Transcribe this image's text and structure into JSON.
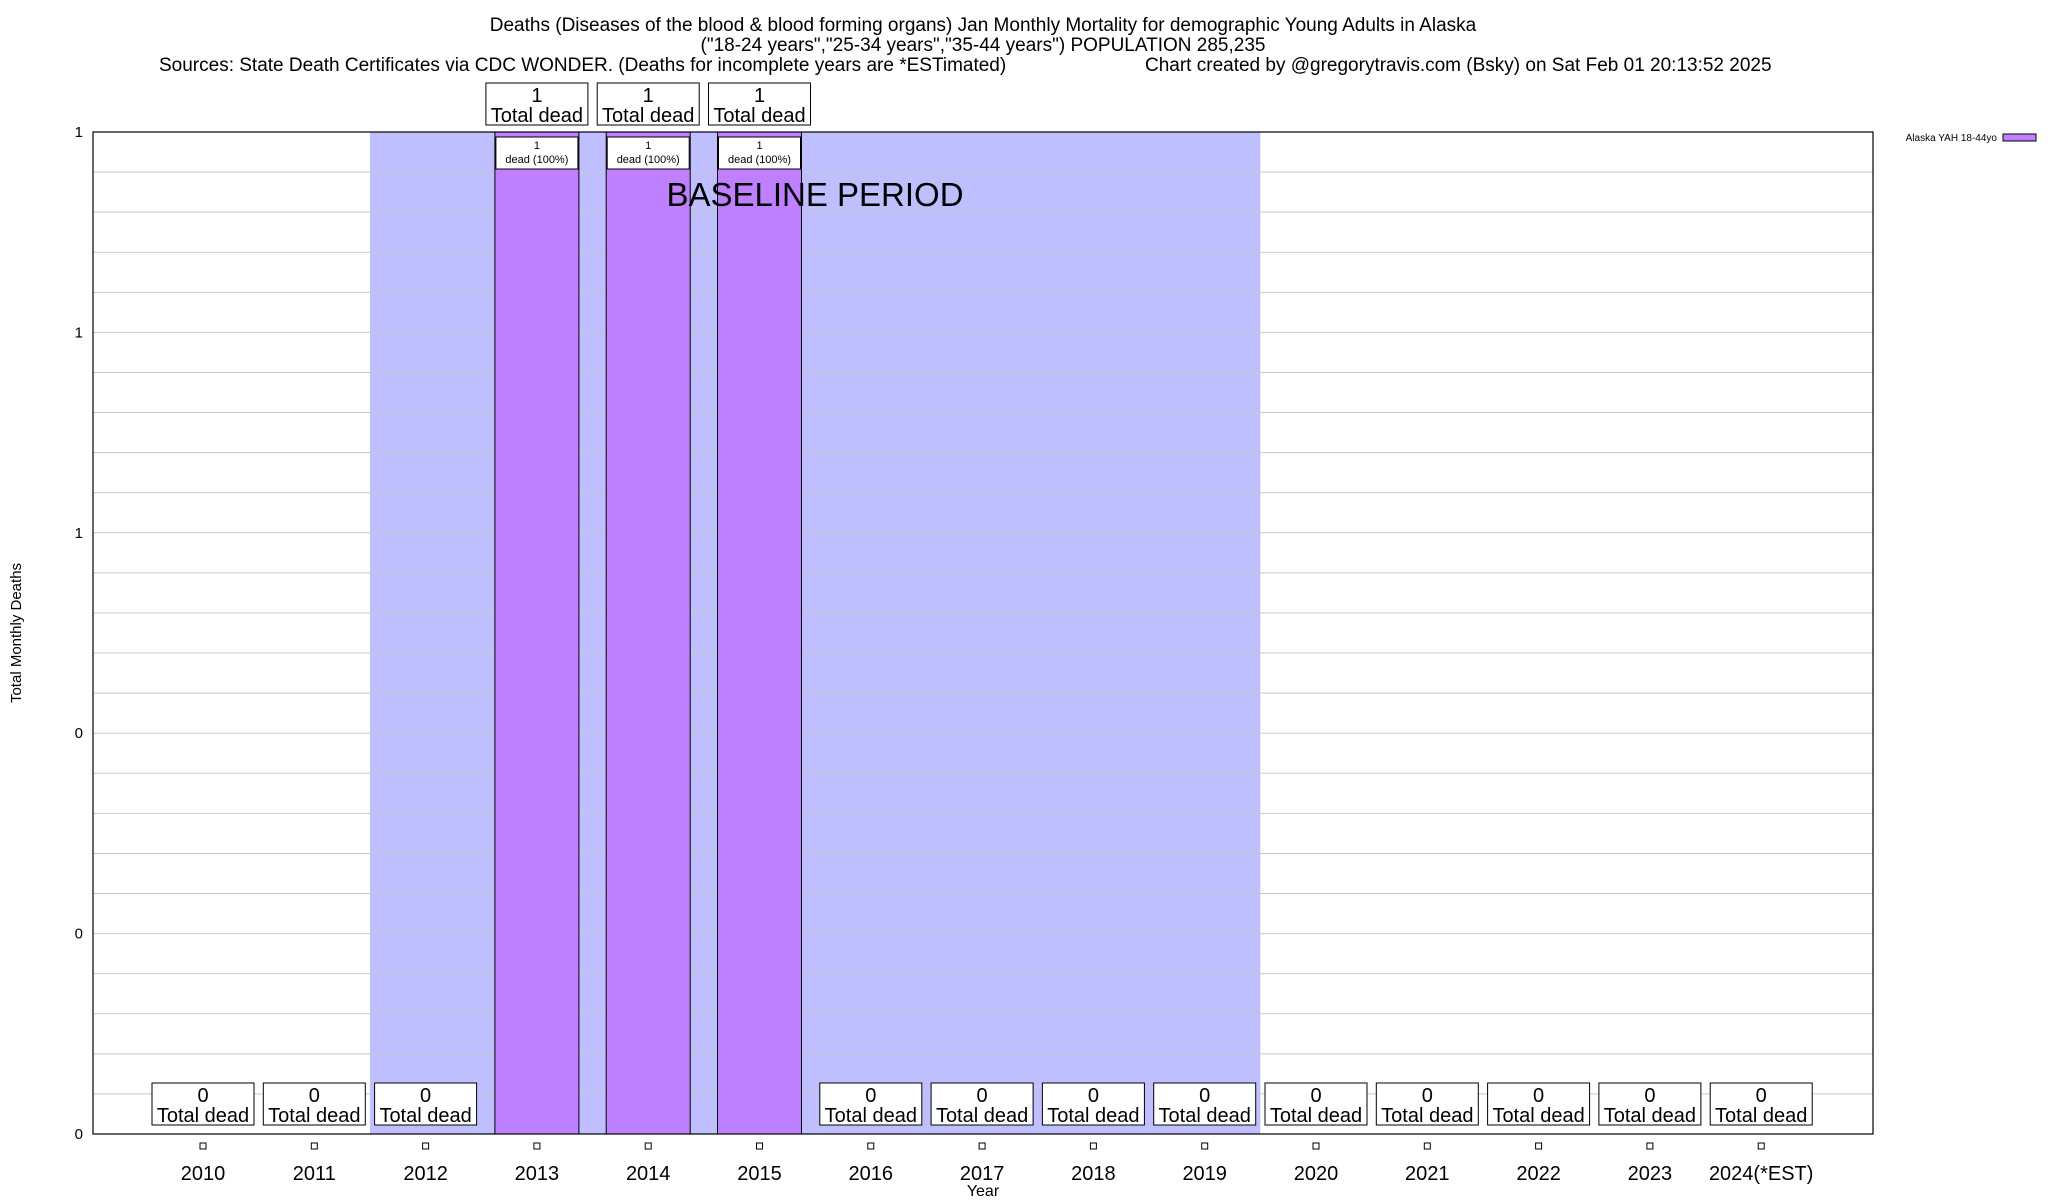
{
  "header": {
    "title_line1": "Deaths (Diseases of the blood & blood forming organs) Jan Monthly Mortality for demographic Young Adults in Alaska",
    "title_line2": "(\"18-24 years\",\"25-34 years\",\"35-44 years\") POPULATION 285,235",
    "sources": "Sources: State Death Certificates via CDC WONDER. (Deaths for incomplete years are *ESTimated)",
    "credit": "Chart created by @gregorytravis.com (Bsky) on Sat Feb 01 20:13:52 2025"
  },
  "chart_data": {
    "type": "bar",
    "xlabel": "Year",
    "ylabel": "Total Monthly Deaths",
    "ylim": [
      0,
      1
    ],
    "y_tick_labels": [
      "0",
      "0",
      "0",
      "1",
      "1",
      "1"
    ],
    "grid": true,
    "legend_position": "top-right",
    "categories": [
      "2010",
      "2011",
      "2012",
      "2013",
      "2014",
      "2015",
      "2016",
      "2017",
      "2018",
      "2019",
      "2020",
      "2021",
      "2022",
      "2023",
      "2024(*EST)"
    ],
    "series": [
      {
        "name": "Alaska YAH 18-44yo",
        "color": "#bf80ff",
        "values": [
          0,
          0,
          0,
          1,
          1,
          1,
          0,
          0,
          0,
          0,
          0,
          0,
          0,
          0,
          0
        ]
      }
    ],
    "total_label_word": "Total dead",
    "inner_label_word": "dead (100%)",
    "baseline": {
      "label": "BASELINE PERIOD",
      "from": "2012",
      "to": "2019",
      "color": "#bfbfff"
    }
  }
}
